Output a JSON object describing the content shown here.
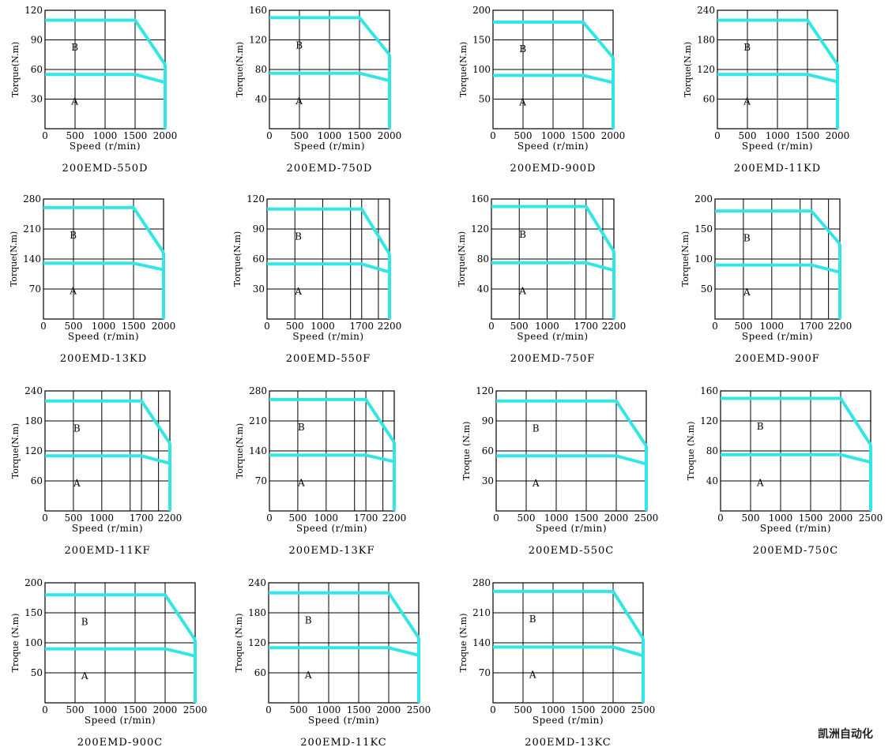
{
  "chart_data": [
    {
      "type": "line",
      "caption": "200EMD-550D",
      "ylabel": "Torque(N.m)",
      "xlabel": "Speed (r/min)",
      "ylim": [
        0,
        120
      ],
      "yticks": [
        30,
        60,
        90,
        120
      ],
      "xlim": [
        0,
        2000
      ],
      "xticks": [
        0,
        500,
        1000,
        1500,
        2000
      ],
      "xtick_labels": [
        "0",
        "500",
        "1000",
        "1500",
        "2000"
      ],
      "region_labels": [
        "B",
        "A"
      ],
      "series": [
        {
          "x": [
            0,
            1500,
            2000
          ],
          "y": [
            110,
            110,
            65
          ]
        },
        {
          "x": [
            0,
            1500,
            2000
          ],
          "y": [
            55,
            55,
            47
          ]
        },
        {
          "x": [
            2000,
            2000
          ],
          "y": [
            0,
            65
          ]
        }
      ]
    },
    {
      "type": "line",
      "caption": "200EMD-750D",
      "ylabel": "Torque(N.m)",
      "xlabel": "Speed (r/min)",
      "ylim": [
        0,
        160
      ],
      "yticks": [
        40,
        80,
        120,
        160
      ],
      "xlim": [
        0,
        2000
      ],
      "xticks": [
        0,
        500,
        1000,
        1500,
        2000
      ],
      "xtick_labels": [
        "0",
        "500",
        "1000",
        "1500",
        "2000"
      ],
      "region_labels": [
        "B",
        "A"
      ],
      "series": [
        {
          "x": [
            0,
            1500,
            2000
          ],
          "y": [
            150,
            150,
            100
          ]
        },
        {
          "x": [
            0,
            1500,
            2000
          ],
          "y": [
            75,
            75,
            65
          ]
        },
        {
          "x": [
            2000,
            2000
          ],
          "y": [
            0,
            100
          ]
        }
      ]
    },
    {
      "type": "line",
      "caption": "200EMD-900D",
      "ylabel": "Torque(N.m)",
      "xlabel": "Speed (r/min)",
      "ylim": [
        0,
        200
      ],
      "yticks": [
        50,
        100,
        150,
        200
      ],
      "xlim": [
        0,
        2000
      ],
      "xticks": [
        0,
        500,
        1000,
        1500,
        2000
      ],
      "xtick_labels": [
        "0",
        "500",
        "1000",
        "1500",
        "2000"
      ],
      "region_labels": [
        "B",
        "A"
      ],
      "series": [
        {
          "x": [
            0,
            1500,
            2000
          ],
          "y": [
            180,
            180,
            120
          ]
        },
        {
          "x": [
            0,
            1500,
            2000
          ],
          "y": [
            90,
            90,
            78
          ]
        },
        {
          "x": [
            2000,
            2000
          ],
          "y": [
            0,
            120
          ]
        }
      ]
    },
    {
      "type": "line",
      "caption": "200EMD-11KD",
      "ylabel": "Torque(N.m)",
      "xlabel": "Speed (r/min)",
      "ylim": [
        0,
        240
      ],
      "yticks": [
        60,
        120,
        180,
        240
      ],
      "xlim": [
        0,
        2000
      ],
      "xticks": [
        0,
        500,
        1000,
        1500,
        2000
      ],
      "xtick_labels": [
        "0",
        "500",
        "1000",
        "1500",
        "2000"
      ],
      "region_labels": [
        "B",
        "A"
      ],
      "series": [
        {
          "x": [
            0,
            1500,
            2000
          ],
          "y": [
            220,
            220,
            130
          ]
        },
        {
          "x": [
            0,
            1500,
            2000
          ],
          "y": [
            110,
            110,
            95
          ]
        },
        {
          "x": [
            2000,
            2000
          ],
          "y": [
            0,
            130
          ]
        }
      ]
    },
    {
      "type": "line",
      "caption": "200EMD-13KD",
      "ylabel": "Torque(N.m)",
      "xlabel": "Speed (r/min)",
      "ylim": [
        0,
        280
      ],
      "yticks": [
        70,
        140,
        210,
        280
      ],
      "xlim": [
        0,
        2000
      ],
      "xticks": [
        0,
        500,
        1000,
        1500,
        2000
      ],
      "xtick_labels": [
        "0",
        "500",
        "1000",
        "1500",
        "2000"
      ],
      "region_labels": [
        "B",
        "A"
      ],
      "series": [
        {
          "x": [
            0,
            1500,
            2000
          ],
          "y": [
            260,
            260,
            155
          ]
        },
        {
          "x": [
            0,
            1500,
            2000
          ],
          "y": [
            130,
            130,
            115
          ]
        },
        {
          "x": [
            2000,
            2000
          ],
          "y": [
            0,
            155
          ]
        }
      ]
    },
    {
      "type": "line",
      "caption": "200EMD-550F",
      "ylabel": "Torque(N.m)",
      "xlabel": "Speed (r/min)",
      "ylim": [
        0,
        120
      ],
      "yticks": [
        30,
        60,
        90,
        120
      ],
      "xlim": [
        0,
        2200
      ],
      "xticks": [
        0,
        500,
        1000,
        1700,
        2200
      ],
      "xtick_labels": [
        "0",
        "500",
        "1000",
        "1700",
        "2200"
      ],
      "gridx": [
        500,
        1000,
        1500,
        1700,
        2000,
        2200
      ],
      "region_labels": [
        "B",
        "A"
      ],
      "series": [
        {
          "x": [
            0,
            1700,
            2200
          ],
          "y": [
            110,
            110,
            65
          ]
        },
        {
          "x": [
            0,
            1700,
            2200
          ],
          "y": [
            55,
            55,
            47
          ]
        },
        {
          "x": [
            2200,
            2200
          ],
          "y": [
            0,
            65
          ]
        }
      ]
    },
    {
      "type": "line",
      "caption": "200EMD-750F",
      "ylabel": "Torque(N.m)",
      "xlabel": "Speed (r/min)",
      "ylim": [
        0,
        160
      ],
      "yticks": [
        40,
        80,
        120,
        160
      ],
      "xlim": [
        0,
        2200
      ],
      "xticks": [
        0,
        500,
        1000,
        1700,
        2200
      ],
      "xtick_labels": [
        "0",
        "500",
        "1000",
        "1700",
        "2200"
      ],
      "gridx": [
        500,
        1000,
        1500,
        1700,
        2000,
        2200
      ],
      "region_labels": [
        "B",
        "A"
      ],
      "series": [
        {
          "x": [
            0,
            1700,
            2200
          ],
          "y": [
            150,
            150,
            90
          ]
        },
        {
          "x": [
            0,
            1700,
            2200
          ],
          "y": [
            75,
            75,
            65
          ]
        },
        {
          "x": [
            2200,
            2200
          ],
          "y": [
            0,
            90
          ]
        }
      ]
    },
    {
      "type": "line",
      "caption": "200EMD-900F",
      "ylabel": "Torque(N.m)",
      "xlabel": "Speed (r/min)",
      "ylim": [
        0,
        200
      ],
      "yticks": [
        50,
        100,
        150,
        200
      ],
      "xlim": [
        0,
        2200
      ],
      "xticks": [
        0,
        500,
        1000,
        1700,
        2200
      ],
      "xtick_labels": [
        "0",
        "500",
        "1000",
        "1700",
        "2200"
      ],
      "gridx": [
        500,
        1000,
        1500,
        1700,
        2000,
        2200
      ],
      "region_labels": [
        "B",
        "A"
      ],
      "series": [
        {
          "x": [
            0,
            1700,
            2200
          ],
          "y": [
            180,
            180,
            125
          ]
        },
        {
          "x": [
            0,
            1700,
            2200
          ],
          "y": [
            90,
            90,
            78
          ]
        },
        {
          "x": [
            2200,
            2200
          ],
          "y": [
            0,
            125
          ]
        }
      ]
    },
    {
      "type": "line",
      "caption": "200EMD-11KF",
      "ylabel": "Torque(N.m)",
      "xlabel": "Speed (r/min)",
      "ylim": [
        0,
        240
      ],
      "yticks": [
        60,
        120,
        180,
        240
      ],
      "xlim": [
        0,
        2200
      ],
      "xticks": [
        0,
        500,
        1000,
        1700,
        2200
      ],
      "xtick_labels": [
        "0",
        "500",
        "1000",
        "1700",
        "2200"
      ],
      "gridx": [
        500,
        1000,
        1500,
        1700,
        2000,
        2200
      ],
      "region_labels": [
        "B",
        "A"
      ],
      "series": [
        {
          "x": [
            0,
            1700,
            2200
          ],
          "y": [
            220,
            220,
            135
          ]
        },
        {
          "x": [
            0,
            1700,
            2200
          ],
          "y": [
            110,
            110,
            95
          ]
        },
        {
          "x": [
            2200,
            2200
          ],
          "y": [
            0,
            135
          ]
        }
      ]
    },
    {
      "type": "line",
      "caption": "200EMD-13KF",
      "ylabel": "Torque(N.m)",
      "xlabel": "Speed (r/min)",
      "ylim": [
        0,
        280
      ],
      "yticks": [
        70,
        140,
        210,
        280
      ],
      "xlim": [
        0,
        2200
      ],
      "xticks": [
        0,
        500,
        1000,
        1700,
        2200
      ],
      "xtick_labels": [
        "0",
        "500",
        "1000",
        "1700",
        "2200"
      ],
      "gridx": [
        500,
        1000,
        1500,
        1700,
        2000,
        2200
      ],
      "region_labels": [
        "B",
        "A"
      ],
      "series": [
        {
          "x": [
            0,
            1700,
            2200
          ],
          "y": [
            260,
            260,
            160
          ]
        },
        {
          "x": [
            0,
            1700,
            2200
          ],
          "y": [
            130,
            130,
            115
          ]
        },
        {
          "x": [
            2200,
            2200
          ],
          "y": [
            0,
            160
          ]
        }
      ]
    },
    {
      "type": "line",
      "caption": "200EMD-550C",
      "ylabel": "Troque (N.m)",
      "xlabel": "Speed (r/min)",
      "ylim": [
        0,
        120
      ],
      "yticks": [
        30,
        60,
        90,
        120
      ],
      "xlim": [
        0,
        2500
      ],
      "xticks": [
        0,
        500,
        1000,
        1500,
        2000,
        2500
      ],
      "xtick_labels": [
        "0",
        "500",
        "1000",
        "1500",
        "2000",
        "2500"
      ],
      "region_labels": [
        "B",
        "A"
      ],
      "series": [
        {
          "x": [
            0,
            2000,
            2500
          ],
          "y": [
            110,
            110,
            65
          ]
        },
        {
          "x": [
            0,
            2000,
            2500
          ],
          "y": [
            55,
            55,
            47
          ]
        },
        {
          "x": [
            2500,
            2500
          ],
          "y": [
            0,
            65
          ]
        }
      ]
    },
    {
      "type": "line",
      "caption": "200EMD-750C",
      "ylabel": "Troque (N.m)",
      "xlabel": "Speed (r/min)",
      "ylim": [
        0,
        160
      ],
      "yticks": [
        40,
        80,
        120,
        160
      ],
      "xlim": [
        0,
        2500
      ],
      "xticks": [
        0,
        500,
        1000,
        1500,
        2000,
        2500
      ],
      "xtick_labels": [
        "0",
        "500",
        "1000",
        "1500",
        "2000",
        "2500"
      ],
      "region_labels": [
        "B",
        "A"
      ],
      "series": [
        {
          "x": [
            0,
            2000,
            2500
          ],
          "y": [
            150,
            150,
            88
          ]
        },
        {
          "x": [
            0,
            2000,
            2500
          ],
          "y": [
            75,
            75,
            65
          ]
        },
        {
          "x": [
            2500,
            2500
          ],
          "y": [
            0,
            88
          ]
        }
      ]
    },
    {
      "type": "line",
      "caption": "200EMD-900C",
      "ylabel": "Troque (N.m)",
      "xlabel": "Speed (r/min)",
      "ylim": [
        0,
        200
      ],
      "yticks": [
        50,
        100,
        150,
        200
      ],
      "xlim": [
        0,
        2500
      ],
      "xticks": [
        0,
        500,
        1000,
        1500,
        2000,
        2500
      ],
      "xtick_labels": [
        "0",
        "500",
        "1000",
        "1500",
        "2000",
        "2500"
      ],
      "region_labels": [
        "B",
        "A"
      ],
      "series": [
        {
          "x": [
            0,
            2000,
            2500
          ],
          "y": [
            180,
            180,
            105
          ]
        },
        {
          "x": [
            0,
            2000,
            2500
          ],
          "y": [
            90,
            90,
            78
          ]
        },
        {
          "x": [
            2500,
            2500
          ],
          "y": [
            0,
            105
          ]
        }
      ]
    },
    {
      "type": "line",
      "caption": "200EMD-11KC",
      "ylabel": "Troque (N.m)",
      "xlabel": "Speed (r/min)",
      "ylim": [
        0,
        240
      ],
      "yticks": [
        60,
        120,
        180,
        240
      ],
      "xlim": [
        0,
        2500
      ],
      "xticks": [
        0,
        500,
        1000,
        1500,
        2000,
        2500
      ],
      "xtick_labels": [
        "0",
        "500",
        "1000",
        "1500",
        "2000",
        "2500"
      ],
      "region_labels": [
        "B",
        "A"
      ],
      "series": [
        {
          "x": [
            0,
            2000,
            2500
          ],
          "y": [
            220,
            220,
            130
          ]
        },
        {
          "x": [
            0,
            2000,
            2500
          ],
          "y": [
            110,
            110,
            95
          ]
        },
        {
          "x": [
            2500,
            2500
          ],
          "y": [
            0,
            130
          ]
        }
      ]
    },
    {
      "type": "line",
      "caption": "200EMD-13KC",
      "ylabel": "Troque (N.m)",
      "xlabel": "Speed (r/min)",
      "ylim": [
        0,
        280
      ],
      "yticks": [
        70,
        140,
        210,
        280
      ],
      "xlim": [
        0,
        2500
      ],
      "xticks": [
        0,
        500,
        1000,
        1500,
        2000,
        2500
      ],
      "xtick_labels": [
        "0",
        "500",
        "1000",
        "1500",
        "2000",
        "2500"
      ],
      "region_labels": [
        "B",
        "A"
      ],
      "series": [
        {
          "x": [
            0,
            2000,
            2500
          ],
          "y": [
            260,
            260,
            150
          ]
        },
        {
          "x": [
            0,
            2000,
            2500
          ],
          "y": [
            130,
            130,
            110
          ]
        },
        {
          "x": [
            2500,
            2500
          ],
          "y": [
            0,
            150
          ]
        }
      ]
    }
  ],
  "curve_color": "#33e6e6",
  "watermark": "凯洲自动化"
}
